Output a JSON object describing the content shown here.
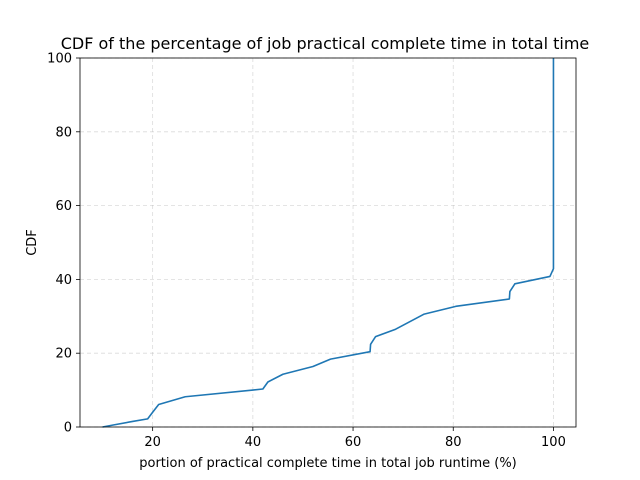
{
  "chart_data": {
    "type": "line",
    "title": "CDF of the percentage of job practical complete time in total time",
    "xlabel": "portion of practical complete time in total job runtime (%)",
    "ylabel": "CDF",
    "xlim": [
      5.5,
      104.5
    ],
    "ylim": [
      0,
      100
    ],
    "xticks": [
      20,
      40,
      60,
      80,
      100
    ],
    "yticks": [
      0,
      20,
      40,
      60,
      80,
      100
    ],
    "xtick_labels": [
      "20",
      "40",
      "60",
      "80",
      "100"
    ],
    "ytick_labels": [
      "0",
      "20",
      "40",
      "60",
      "80",
      "100"
    ],
    "grid": true,
    "series": [
      {
        "color": "#1f77b4",
        "x": [
          10,
          12,
          16,
          19,
          20,
          21.2,
          26.5,
          40,
          42,
          43,
          46,
          52,
          55.5,
          63.4,
          63.5,
          64.5,
          68.5,
          74.2,
          80.5,
          91.2,
          91.3,
          92.3,
          99.3,
          100,
          100
        ],
        "y": [
          0,
          0.5,
          1.5,
          2.2,
          4,
          6.1,
          8.2,
          10,
          10.3,
          12.2,
          14.3,
          16.4,
          18.4,
          20.4,
          22.4,
          24.5,
          26.5,
          30.6,
          32.7,
          34.7,
          36.7,
          38.8,
          40.8,
          42.9,
          100
        ]
      }
    ]
  }
}
